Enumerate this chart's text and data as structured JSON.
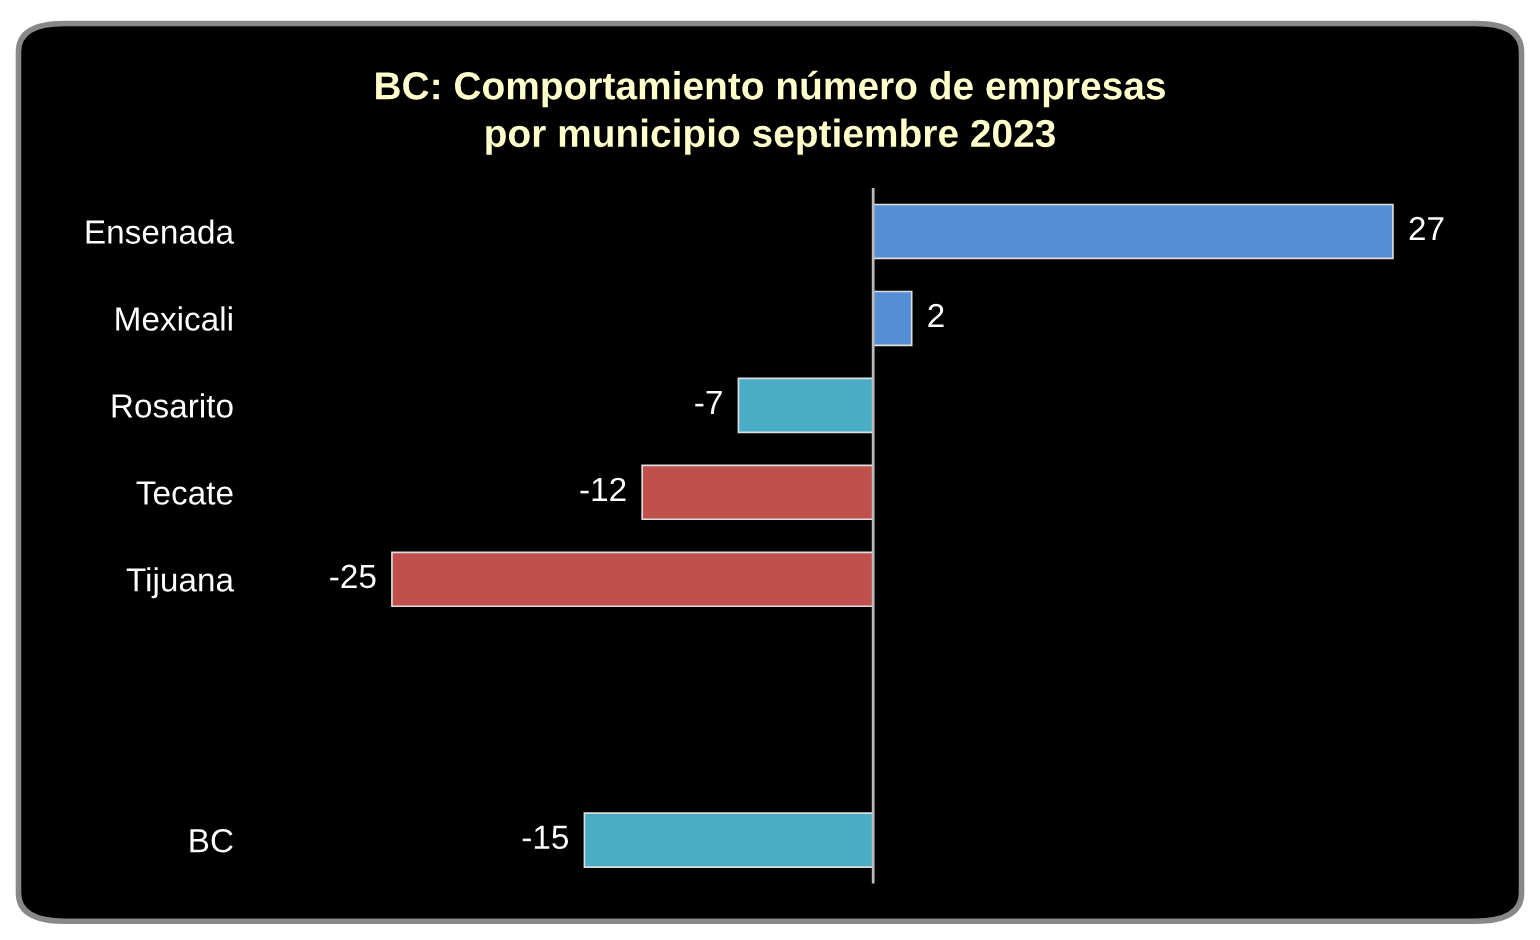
{
  "chart_data": {
    "type": "bar",
    "orientation": "horizontal",
    "title": "BC: Comportamiento número de empresas\npor municipio septiembre 2023",
    "categories": [
      "Ensenada",
      "Mexicali",
      "Rosarito",
      "Tecate",
      "Tijuana",
      null,
      null,
      "BC"
    ],
    "values": [
      27,
      2,
      -7,
      -12,
      -25,
      null,
      null,
      -15
    ],
    "colors": [
      "#558ed5",
      "#558ed5",
      "#4bacc6",
      "#c0504d",
      "#c0504d",
      null,
      null,
      "#4bacc6"
    ],
    "data_labels": true,
    "grid": false,
    "legend": false
  }
}
